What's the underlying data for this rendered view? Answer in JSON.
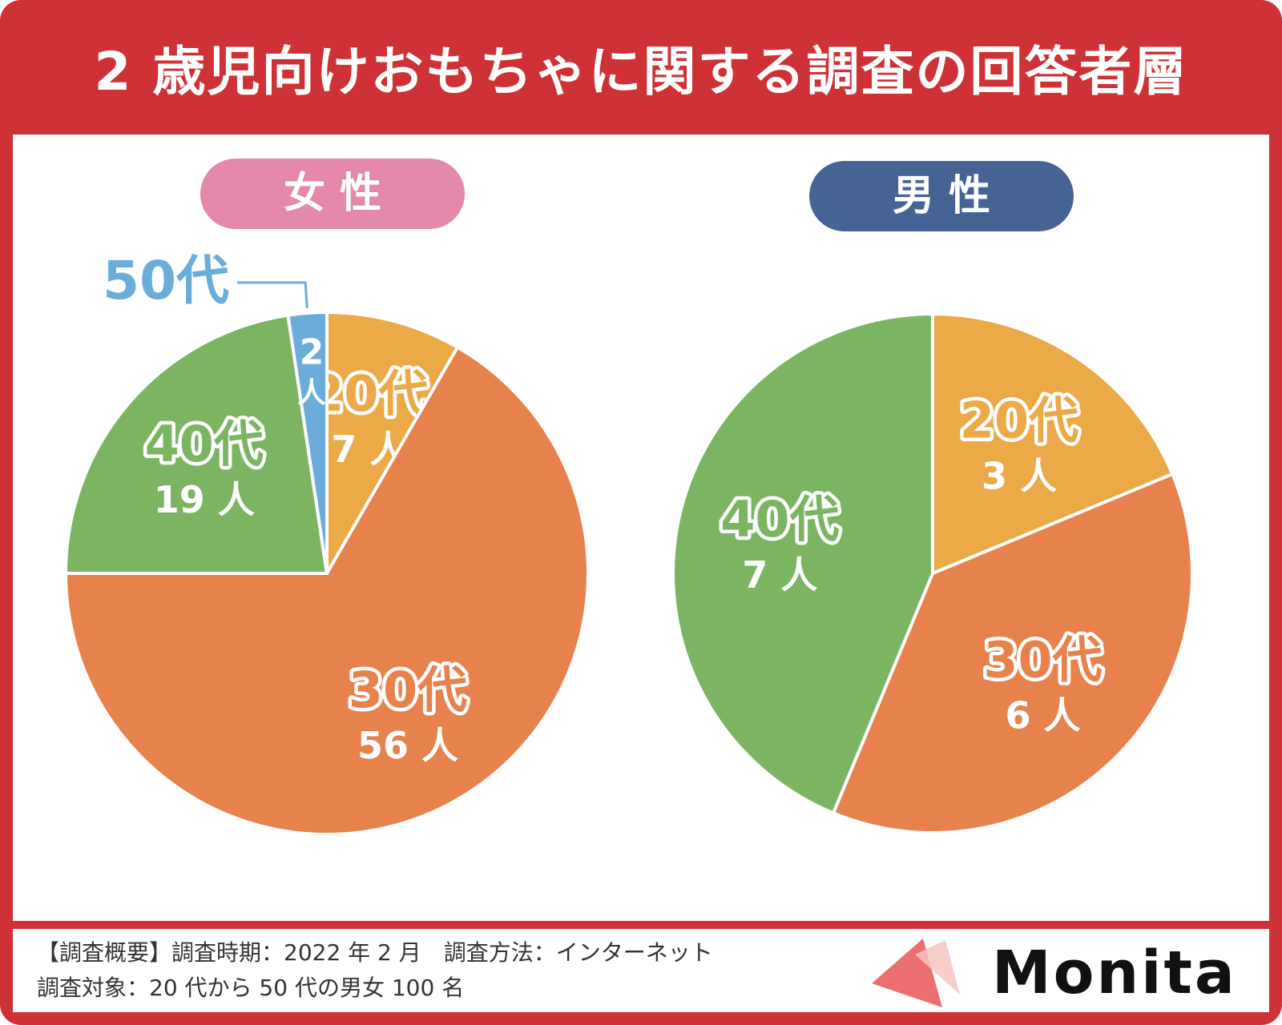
{
  "title": "2 歳児向けおもちゃに関する調査の回答者層",
  "chart_data": [
    {
      "type": "pie",
      "title": "女 性",
      "unit": "人",
      "slices": [
        {
          "label": "20代",
          "value": 7,
          "count_label": "7 人",
          "color": "#eba948"
        },
        {
          "label": "30代",
          "value": 56,
          "count_label": "56 人",
          "color": "#e8824c"
        },
        {
          "label": "40代",
          "value": 19,
          "count_label": "19 人",
          "color": "#7bb562"
        },
        {
          "label": "50代",
          "value": 2,
          "count_label": "2 人",
          "color": "#6aadda"
        }
      ]
    },
    {
      "type": "pie",
      "title": "男 性",
      "unit": "人",
      "slices": [
        {
          "label": "20代",
          "value": 3,
          "count_label": "3 人",
          "color": "#eba948"
        },
        {
          "label": "30代",
          "value": 6,
          "count_label": "6 人",
          "color": "#e8824c"
        },
        {
          "label": "40代",
          "value": 7,
          "count_label": "7 人",
          "color": "#7bb562"
        }
      ]
    }
  ],
  "colors": {
    "frame": "#cf3236",
    "female_pill": "#e489ab",
    "male_pill": "#466395"
  },
  "footer": {
    "line1": "【調査概要】調査時期：2022 年 2 月　調査方法：インターネット",
    "line2": "調査対象：20 代から 50 代の男女 100 名"
  },
  "logo": {
    "text": "Monita"
  }
}
